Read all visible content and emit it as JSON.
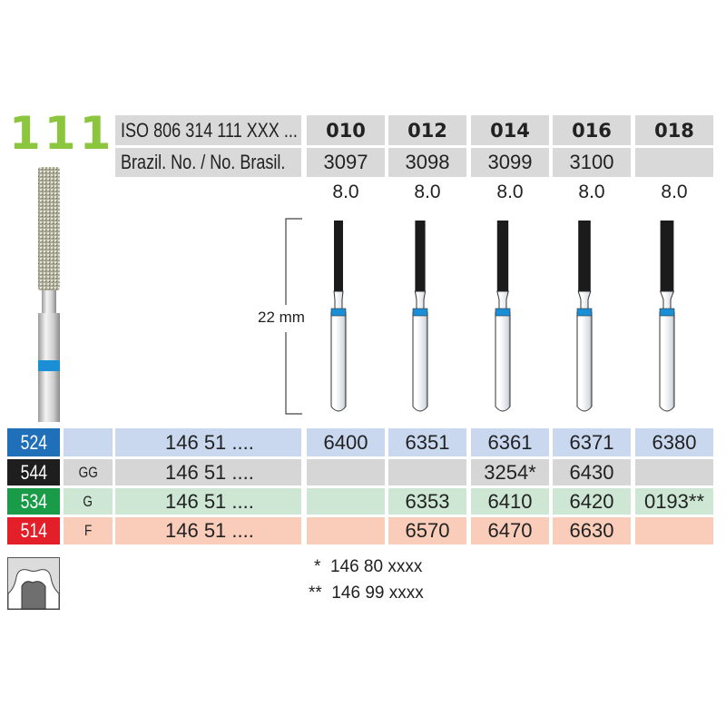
{
  "series_number": "111",
  "header": {
    "iso_label": "ISO 806 314 111 XXX ...",
    "brazil_label": "Brazil. No. / No. Brasil.",
    "sizes": [
      "010",
      "012",
      "014",
      "016",
      "018"
    ],
    "brazil_numbers": [
      "3097",
      "3098",
      "3099",
      "3100",
      ""
    ],
    "head_lengths": [
      "8.0",
      "8.0",
      "8.0",
      "8.0",
      "8.0"
    ]
  },
  "dimension_label": "22 mm",
  "rows": [
    {
      "code": "524",
      "grit": "",
      "ref": "146 51 ....",
      "color": "#1f6fb9",
      "bg": "#c9d8ef",
      "values": [
        "6400",
        "6351",
        "6361",
        "6371",
        "6380"
      ]
    },
    {
      "code": "544",
      "grit": "GG",
      "ref": "146 51 ....",
      "color": "#1e1e1e",
      "bg": "#d6d6d6",
      "values": [
        "",
        "",
        "3254*",
        "6430",
        ""
      ]
    },
    {
      "code": "534",
      "grit": "G",
      "ref": "146 51 ....",
      "color": "#1a9b48",
      "bg": "#cde7d4",
      "values": [
        "",
        "6353",
        "6410",
        "6420",
        "0193**"
      ]
    },
    {
      "code": "514",
      "grit": "F",
      "ref": "146 51 ....",
      "color": "#e3202a",
      "bg": "#f9cdb9",
      "values": [
        "",
        "6570",
        "6470",
        "6630",
        ""
      ]
    }
  ],
  "footnotes": [
    "*  146 80 xxxx",
    "**  146 99 xxxx"
  ],
  "colors": {
    "series_green": "#8cc63f",
    "band_blue": "#1a8fd6"
  },
  "icons": {
    "application": "tooth-crown-preparation-icon"
  }
}
